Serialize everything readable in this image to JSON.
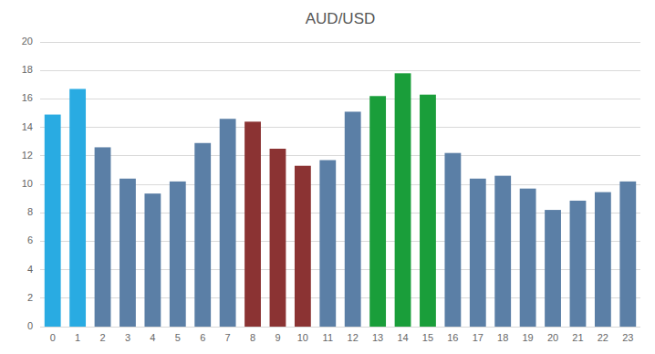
{
  "chart_data": {
    "type": "bar",
    "title": "AUD/USD",
    "categories": [
      0,
      1,
      2,
      3,
      4,
      5,
      6,
      7,
      8,
      9,
      10,
      11,
      12,
      13,
      14,
      15,
      16,
      17,
      18,
      19,
      20,
      21,
      22,
      23
    ],
    "values": [
      14.9,
      16.7,
      12.6,
      10.4,
      9.35,
      10.2,
      12.9,
      14.6,
      14.4,
      12.5,
      11.3,
      11.7,
      15.1,
      16.2,
      17.8,
      16.3,
      12.2,
      10.4,
      10.6,
      9.7,
      8.2,
      8.85,
      9.45,
      10.2
    ],
    "colors": [
      "#29ABE2",
      "#29ABE2",
      "#5B7FA6",
      "#5B7FA6",
      "#5B7FA6",
      "#5B7FA6",
      "#5B7FA6",
      "#5B7FA6",
      "#8B3333",
      "#8B3333",
      "#8B3333",
      "#5B7FA6",
      "#5B7FA6",
      "#1A9E3A",
      "#1A9E3A",
      "#1A9E3A",
      "#5B7FA6",
      "#5B7FA6",
      "#5B7FA6",
      "#5B7FA6",
      "#5B7FA6",
      "#5B7FA6",
      "#5B7FA6",
      "#5B7FA6"
    ],
    "ylim": [
      0,
      20
    ],
    "yticks": [
      0,
      2,
      4,
      6,
      8,
      10,
      12,
      14,
      16,
      18,
      20
    ],
    "grid": true
  }
}
